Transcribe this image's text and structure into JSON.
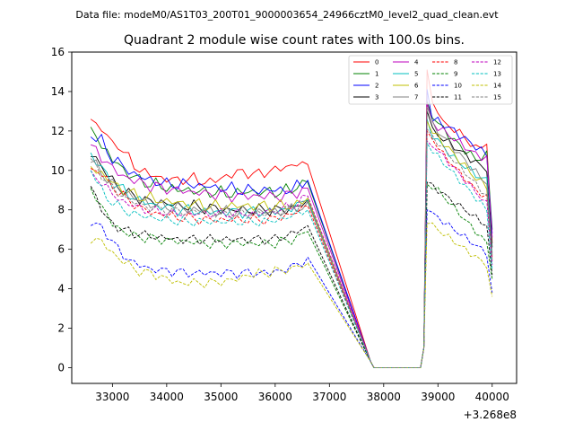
{
  "chart_data": {
    "type": "line",
    "suptitle": "Data file: modeM0/AS1T03_200T01_9000003654_24966cztM0_level2_quad_clean.evt",
    "title": "Quadrant 2 module wise count rates with 100.0s bins.",
    "xlabel": "",
    "ylabel": "",
    "x_offset_label": "+3.268e8",
    "xlim": [
      32250,
      40450
    ],
    "ylim": [
      -0.8,
      16
    ],
    "xticks": [
      33000,
      34000,
      35000,
      36000,
      37000,
      38000,
      39000,
      40000
    ],
    "xtick_labels": [
      "33000",
      "34000",
      "35000",
      "36000",
      "37000",
      "38000",
      "39000",
      "40000"
    ],
    "yticks": [
      0,
      2,
      4,
      6,
      8,
      10,
      12,
      14,
      16
    ],
    "ytick_labels": [
      "0",
      "2",
      "4",
      "6",
      "8",
      "10",
      "12",
      "14",
      "16"
    ],
    "legend_location": "upper right",
    "x_start": 32600,
    "x_step": 100,
    "gap_start": 37700,
    "gap_end": 38800,
    "x_end": 40050,
    "series": [
      {
        "name": "0",
        "color": "#ff0000",
        "dash": "solid",
        "pre": [
          12.6,
          12.3,
          12.2,
          11.7,
          11.3,
          11.4,
          10.9,
          10.6,
          10.3,
          10.0,
          9.9,
          9.8,
          9.7,
          9.6,
          9.6,
          9.5,
          9.5,
          9.6,
          9.5,
          9.6,
          9.5,
          9.4,
          9.4,
          9.5,
          9.6,
          9.7,
          9.8,
          9.9,
          9.9,
          9.9,
          9.8,
          9.8,
          9.9,
          10.0,
          10.0,
          10.1,
          10.2,
          10.2,
          10.4,
          10.3,
          10.3
        ],
        "post": [
          15.1,
          13.3,
          13.1,
          12.4,
          12.2,
          12.1,
          11.9,
          11.7,
          11.3,
          11.1,
          11.3,
          11.3,
          6.3
        ]
      },
      {
        "name": "1",
        "color": "#008000",
        "dash": "solid",
        "pre": [
          12.2,
          11.8,
          11.3,
          10.9,
          10.5,
          10.4,
          10.0,
          9.8,
          9.7,
          9.5,
          9.4,
          9.3,
          9.3,
          9.2,
          9.1,
          9.1,
          9.0,
          9.0,
          9.0,
          9.0,
          8.9,
          8.9,
          8.9,
          8.9,
          8.9,
          8.8,
          8.8,
          8.9,
          8.9,
          8.9,
          8.9,
          8.9,
          8.9,
          8.9,
          8.9,
          8.9,
          9.0,
          9.0,
          9.2,
          9.3,
          9.4
        ],
        "post": [
          13.5,
          12.8,
          12.4,
          12.1,
          11.8,
          11.5,
          11.3,
          11.0,
          10.8,
          10.6,
          10.6,
          10.8,
          7.0
        ]
      },
      {
        "name": "2",
        "color": "#0000ff",
        "dash": "solid",
        "pre": [
          11.7,
          11.6,
          11.5,
          11.0,
          10.6,
          10.4,
          10.2,
          10.0,
          9.8,
          9.7,
          9.6,
          9.5,
          9.4,
          9.4,
          9.3,
          9.3,
          9.3,
          9.3,
          9.3,
          9.3,
          9.2,
          9.2,
          9.2,
          9.1,
          9.1,
          9.1,
          9.1,
          9.0,
          9.0,
          9.0,
          9.0,
          9.0,
          9.0,
          9.0,
          9.0,
          9.0,
          9.0,
          9.0,
          9.2,
          9.3,
          9.5
        ],
        "post": [
          14.1,
          12.6,
          12.5,
          12.3,
          12.2,
          12.0,
          11.8,
          11.6,
          11.4,
          11.2,
          11.0,
          10.8,
          6.8
        ]
      },
      {
        "name": "3",
        "color": "#000000",
        "dash": "solid",
        "pre": [
          10.7,
          10.6,
          10.2,
          9.8,
          9.5,
          9.2,
          9.0,
          8.8,
          8.7,
          8.6,
          8.5,
          8.4,
          8.4,
          8.4,
          8.3,
          8.3,
          8.2,
          8.2,
          8.2,
          8.2,
          8.1,
          8.1,
          8.1,
          8.1,
          8.0,
          8.0,
          8.0,
          8.0,
          8.0,
          8.0,
          8.0,
          8.0,
          8.0,
          8.0,
          8.0,
          8.0,
          8.0,
          8.1,
          8.2,
          8.3,
          8.5
        ],
        "post": [
          13.0,
          12.0,
          11.8,
          11.6,
          11.4,
          11.2,
          11.0,
          10.8,
          10.6,
          10.4,
          10.2,
          10.1,
          6.1
        ]
      },
      {
        "name": "4",
        "color": "#bf00bf",
        "dash": "solid",
        "pre": [
          11.3,
          11.0,
          10.7,
          10.4,
          10.1,
          9.9,
          9.7,
          9.6,
          9.5,
          9.4,
          9.3,
          9.2,
          9.2,
          9.1,
          9.1,
          9.0,
          9.0,
          9.0,
          8.9,
          8.9,
          8.9,
          8.8,
          8.8,
          8.8,
          8.8,
          8.7,
          8.7,
          8.7,
          8.7,
          8.7,
          8.7,
          8.7,
          8.7,
          8.7,
          8.7,
          8.7,
          8.7,
          8.8,
          8.9,
          9.0,
          9.1
        ],
        "post": [
          13.4,
          12.4,
          12.2,
          12.0,
          11.8,
          11.6,
          11.4,
          11.2,
          11.0,
          10.8,
          10.7,
          10.6,
          6.6
        ]
      },
      {
        "name": "5",
        "color": "#00bfbf",
        "dash": "solid",
        "pre": [
          10.9,
          10.5,
          10.1,
          9.7,
          9.4,
          9.2,
          9.0,
          8.8,
          8.6,
          8.5,
          8.4,
          8.3,
          8.2,
          8.2,
          8.1,
          8.1,
          8.0,
          8.0,
          8.0,
          8.0,
          7.9,
          7.9,
          7.9,
          7.9,
          7.9,
          7.9,
          7.9,
          7.9,
          7.9,
          7.9,
          7.9,
          7.9,
          7.9,
          7.9,
          7.9,
          8.0,
          8.0,
          8.1,
          8.2,
          8.3,
          8.5
        ],
        "post": [
          12.6,
          11.8,
          11.5,
          11.2,
          10.9,
          10.6,
          10.4,
          10.2,
          10.0,
          9.8,
          9.6,
          9.5,
          5.8
        ]
      },
      {
        "name": "6",
        "color": "#bfbf00",
        "dash": "solid",
        "pre": [
          10.2,
          10.0,
          9.8,
          9.6,
          9.4,
          9.2,
          9.0,
          8.9,
          8.8,
          8.7,
          8.6,
          8.6,
          8.5,
          8.5,
          8.4,
          8.4,
          8.4,
          8.3,
          8.3,
          8.3,
          8.3,
          8.2,
          8.2,
          8.2,
          8.2,
          8.2,
          8.2,
          8.2,
          8.2,
          8.2,
          8.2,
          8.2,
          8.2,
          8.2,
          8.2,
          8.2,
          8.2,
          8.2,
          8.3,
          8.4,
          8.6
        ],
        "post": [
          12.5,
          11.9,
          11.7,
          11.4,
          11.1,
          10.8,
          10.5,
          10.2,
          9.9,
          9.6,
          9.4,
          9.2,
          5.5
        ]
      },
      {
        "name": "7",
        "color": "#808080",
        "dash": "solid",
        "pre": [
          10.4,
          10.2,
          9.9,
          9.6,
          9.3,
          9.1,
          8.9,
          8.8,
          8.6,
          8.5,
          8.4,
          8.3,
          8.3,
          8.2,
          8.2,
          8.1,
          8.1,
          8.1,
          8.0,
          8.0,
          8.0,
          8.0,
          8.0,
          7.9,
          7.9,
          7.9,
          7.9,
          7.9,
          7.9,
          7.9,
          7.9,
          7.9,
          7.9,
          7.9,
          7.9,
          7.9,
          8.0,
          8.0,
          8.1,
          8.2,
          8.4
        ],
        "post": [
          13.2,
          12.3,
          12.0,
          11.7,
          11.4,
          11.1,
          10.8,
          10.5,
          10.2,
          9.9,
          9.6,
          9.4,
          5.4
        ]
      },
      {
        "name": "8",
        "color": "#ff0000",
        "dash": "dashed",
        "pre": [
          10.1,
          10.0,
          9.8,
          9.5,
          9.2,
          8.9,
          8.7,
          8.5,
          8.3,
          8.1,
          8.0,
          7.9,
          7.8,
          7.8,
          7.7,
          7.7,
          7.6,
          7.6,
          7.6,
          7.6,
          7.5,
          7.5,
          7.5,
          7.5,
          7.5,
          7.5,
          7.5,
          7.5,
          7.5,
          7.5,
          7.5,
          7.5,
          7.5,
          7.5,
          7.6,
          7.6,
          7.7,
          7.8,
          7.9,
          8.0,
          8.2
        ],
        "post": [
          12.0,
          11.6,
          11.2,
          10.8,
          10.5,
          10.2,
          9.9,
          9.6,
          9.3,
          9.0,
          8.8,
          8.6,
          5.6
        ]
      },
      {
        "name": "9",
        "color": "#008000",
        "dash": "dashed",
        "pre": [
          9.1,
          8.7,
          8.2,
          7.7,
          7.3,
          7.1,
          6.9,
          6.8,
          6.7,
          6.6,
          6.6,
          6.6,
          6.5,
          6.5,
          6.5,
          6.4,
          6.4,
          6.4,
          6.4,
          6.4,
          6.3,
          6.3,
          6.3,
          6.3,
          6.3,
          6.3,
          6.3,
          6.3,
          6.3,
          6.3,
          6.3,
          6.3,
          6.3,
          6.3,
          6.3,
          6.4,
          6.4,
          6.5,
          6.6,
          6.7,
          6.9
        ],
        "post": [
          9.3,
          9.2,
          9.0,
          8.7,
          8.4,
          8.1,
          7.8,
          7.5,
          7.2,
          6.9,
          6.6,
          6.3,
          4.5
        ]
      },
      {
        "name": "10",
        "color": "#0000ff",
        "dash": "dashed",
        "pre": [
          7.2,
          7.2,
          7.1,
          6.8,
          6.4,
          6.0,
          5.7,
          5.5,
          5.3,
          5.2,
          5.1,
          5.0,
          5.0,
          4.9,
          4.9,
          4.9,
          4.9,
          4.8,
          4.8,
          4.8,
          4.8,
          4.8,
          4.8,
          4.8,
          4.8,
          4.8,
          4.8,
          4.8,
          4.8,
          4.8,
          4.8,
          4.8,
          4.8,
          4.8,
          4.9,
          4.9,
          5.0,
          5.1,
          5.2,
          5.4,
          5.6
        ],
        "post": [
          8.0,
          7.8,
          7.6,
          7.4,
          7.2,
          7.0,
          6.8,
          6.6,
          6.4,
          6.2,
          6.0,
          5.8,
          3.8
        ]
      },
      {
        "name": "11",
        "color": "#000000",
        "dash": "dashed",
        "pre": [
          9.2,
          8.6,
          8.0,
          7.6,
          7.3,
          7.1,
          7.0,
          6.9,
          6.8,
          6.8,
          6.7,
          6.7,
          6.6,
          6.6,
          6.6,
          6.5,
          6.5,
          6.5,
          6.5,
          6.5,
          6.5,
          6.5,
          6.5,
          6.5,
          6.5,
          6.5,
          6.5,
          6.5,
          6.5,
          6.5,
          6.5,
          6.5,
          6.5,
          6.5,
          6.5,
          6.6,
          6.7,
          6.8,
          6.9,
          7.0,
          7.2
        ],
        "post": [
          9.4,
          9.2,
          9.0,
          8.8,
          8.6,
          8.4,
          8.2,
          8.0,
          7.8,
          7.6,
          7.4,
          7.2,
          4.7
        ]
      },
      {
        "name": "12",
        "color": "#bf00bf",
        "dash": "dashed",
        "pre": [
          10.0,
          9.7,
          9.4,
          9.1,
          8.8,
          8.6,
          8.4,
          8.3,
          8.2,
          8.1,
          8.0,
          8.0,
          7.9,
          7.9,
          7.9,
          7.8,
          7.8,
          7.8,
          7.8,
          7.8,
          7.8,
          7.8,
          7.8,
          7.8,
          7.8,
          7.8,
          7.8,
          7.8,
          7.8,
          7.8,
          7.8,
          7.8,
          7.9,
          7.9,
          8.0,
          8.0,
          8.1,
          8.2,
          8.3,
          8.5,
          8.7
        ],
        "post": [
          11.5,
          11.3,
          11.0,
          10.7,
          10.4,
          10.1,
          9.8,
          9.5,
          9.2,
          8.9,
          8.6,
          8.3,
          5.2
        ]
      },
      {
        "name": "13",
        "color": "#00bfbf",
        "dash": "dashed",
        "pre": [
          10.0,
          9.5,
          9.0,
          8.6,
          8.4,
          8.2,
          8.0,
          7.9,
          7.8,
          7.7,
          7.7,
          7.6,
          7.6,
          7.5,
          7.5,
          7.5,
          7.4,
          7.4,
          7.4,
          7.4,
          7.4,
          7.4,
          7.4,
          7.4,
          7.4,
          7.4,
          7.4,
          7.4,
          7.4,
          7.4,
          7.4,
          7.4,
          7.4,
          7.4,
          7.5,
          7.5,
          7.6,
          7.7,
          7.8,
          7.9,
          8.0
        ],
        "post": [
          11.4,
          11.0,
          10.7,
          10.4,
          10.1,
          9.8,
          9.5,
          9.2,
          8.9,
          8.6,
          8.3,
          8.0,
          5.0
        ]
      },
      {
        "name": "14",
        "color": "#bfbf00",
        "dash": "dashed",
        "pre": [
          6.3,
          6.5,
          6.4,
          6.1,
          5.8,
          5.6,
          5.4,
          5.2,
          5.0,
          4.9,
          4.8,
          4.8,
          4.7,
          4.6,
          4.5,
          4.4,
          4.3,
          4.3,
          4.3,
          4.3,
          4.3,
          4.3,
          4.3,
          4.3,
          4.4,
          4.4,
          4.4,
          4.5,
          4.6,
          4.7,
          4.7,
          4.8,
          4.8,
          4.8,
          4.9,
          4.9,
          5.0,
          5.0,
          5.1,
          5.2,
          5.3
        ],
        "post": [
          7.3,
          7.2,
          7.0,
          6.8,
          6.6,
          6.4,
          6.2,
          6.0,
          5.8,
          5.6,
          5.4,
          5.2,
          3.6
        ]
      },
      {
        "name": "15",
        "color": "#808080",
        "dash": "dashed",
        "pre": [
          10.6,
          10.2,
          9.8,
          9.4,
          9.1,
          8.9,
          8.7,
          8.5,
          8.4,
          8.3,
          8.2,
          8.1,
          8.1,
          8.0,
          8.0,
          8.0,
          7.9,
          7.9,
          7.9,
          7.9,
          7.9,
          7.9,
          7.8,
          7.8,
          7.8,
          7.8,
          7.8,
          7.8,
          7.8,
          7.8,
          7.8,
          7.8,
          7.8,
          7.8,
          7.9,
          7.9,
          8.0,
          8.1,
          8.2,
          8.3,
          8.4
        ],
        "post": [
          12.1,
          11.7,
          11.4,
          11.1,
          10.8,
          10.5,
          10.2,
          9.9,
          9.6,
          9.3,
          9.0,
          8.7,
          5.7
        ]
      }
    ]
  }
}
